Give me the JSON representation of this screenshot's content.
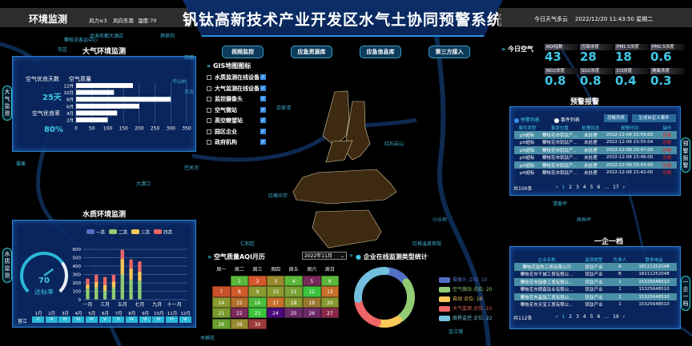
{
  "header": {
    "left_title": "环境监测",
    "wind_force": "风力≤3",
    "wind_dir": "风向东南",
    "humidity": "湿度:70",
    "title": "钒钛高新技术产业开发区水气土协同预警系统",
    "weather": "今日天气多云",
    "datetime": "2022/12/20 11:43:50 星期二"
  },
  "side_tabs": {
    "air": "大气监测",
    "water": "水质监测",
    "alarm": "预警报警",
    "enterprise": "一企一档"
  },
  "nav_buttons": [
    "视频监控",
    "应急资源库",
    "应急信息库",
    "第三方接入"
  ],
  "gis": {
    "title": "GIS地图图标",
    "items": [
      "水质监测在线设备",
      "大气监测在线设备",
      "监控摄像头",
      "空气微站",
      "高空瞭望站",
      "园区企业",
      "政府机构"
    ]
  },
  "air": {
    "title": "大气环境监测",
    "good_days_label": "空气优良天数",
    "good_days": "25天",
    "good_rate_label": "空气优良率",
    "good_rate": "80%",
    "chart_title": "空气质量"
  },
  "water": {
    "title": "水质环境监测",
    "gauge_value": "70",
    "gauge_label": "达标率",
    "gauge_percent": 70,
    "table_row_label": "营江",
    "months": [
      "1月",
      "2月",
      "3月",
      "4月",
      "5月",
      "6月",
      "7月",
      "8月",
      "9月",
      "10月",
      "11月",
      "12月"
    ],
    "grades": [
      "II",
      "III",
      "III",
      "VI",
      "IV",
      "V",
      "II",
      "IV",
      "VI",
      "IV",
      "IV",
      "VI"
    ]
  },
  "today_air": {
    "title": "今日空气",
    "items": [
      {
        "label": "AQI指数",
        "value": "43"
      },
      {
        "label": "污染浓度",
        "value": "28"
      },
      {
        "label": "PM1.5浓度",
        "value": "18"
      },
      {
        "label": "PM2.5浓度",
        "value": "0.6"
      },
      {
        "label": "NO2浓度",
        "value": "0.8"
      },
      {
        "label": "SO2浓度",
        "value": "0.8"
      },
      {
        "label": "CO浓度",
        "value": "0.4"
      },
      {
        "label": "臭氧浓度",
        "value": "0.3"
      }
    ]
  },
  "alarm": {
    "title": "预警报警",
    "radio1": "预警列表",
    "radio2": "事件列表",
    "btn1": "忽略列表",
    "btn2": "生成自定义事件",
    "headers": [
      "事件类型",
      "事发位置",
      "处理状态",
      "报警时间",
      "操作"
    ],
    "rows": [
      [
        "pH超标",
        "攀枝花市钒钛产...",
        "未处理",
        "2022-12-08 23:59:00",
        "忽略"
      ],
      [
        "pH超标",
        "攀枝花市钒钛产...",
        "未处理",
        "2022-12-08 23:55:04",
        "忽略"
      ],
      [
        "pH超标",
        "攀枝花市钒钛产...",
        "未处理",
        "2022-12-08 23:47:00",
        "忽略"
      ],
      [
        "pH超标",
        "攀枝花市钒钛产...",
        "未处理",
        "2022-12-08 23:46:00",
        "忽略"
      ],
      [
        "pH超标",
        "攀枝花市钒钛产...",
        "未处理",
        "2022-12-08 23:43:00",
        "忽略"
      ],
      [
        "pH超标",
        "攀枝花市钒钛产...",
        "未处理",
        "2022-12-08 23:42:00",
        "忽略"
      ]
    ],
    "total": "共100条",
    "pages": [
      "‹",
      "1",
      "2",
      "3",
      "4",
      "5",
      "6",
      "...",
      "17",
      "›"
    ]
  },
  "enterprise": {
    "title": "一企一档",
    "headers": [
      "企业名称",
      "监测类型",
      "负责人",
      "联系电话"
    ],
    "rows": [
      [
        "攀枝花钛陈工贸有限公司",
        "钒钛产业",
        "A",
        "18111252048"
      ],
      [
        "攀枝花市千城工贸有限公...",
        "钒钛产业",
        "B",
        "18111252048"
      ],
      [
        "攀枝花市瑞泰工贸有限公...",
        "钒钛产业",
        "1",
        "15325648510"
      ],
      [
        "攀枝花市朗鑫钛业有限公...",
        "钒钛产业",
        "1",
        "15325648510"
      ],
      [
        "攀枝花市晶瑞工贸有限公...",
        "钒钛产业",
        "1",
        "15325648510"
      ],
      [
        "攀枝花市天宝工贸有限公...",
        "钒钛产业",
        "1",
        "15325648510"
      ]
    ],
    "total": "共112条",
    "pages": [
      "‹",
      "1",
      "2",
      "3",
      "4",
      "5",
      "6",
      "...",
      "19",
      "›"
    ]
  },
  "calendar": {
    "title": "空气质量AQI月历",
    "month": "2022年11月",
    "weekdays": [
      "周一",
      "周二",
      "周三",
      "周四",
      "周五",
      "周六",
      "周日"
    ],
    "start_offset": 1,
    "colors": [
      "#5cb83a",
      "#d4582c",
      "#9a8a2e",
      "#5cb83a",
      "#7a2a5a",
      "#5cb83a",
      "#c8502a",
      "#d05a2a",
      "#8a9a30",
      "#8a9a30",
      "#7aa035",
      "#3cc43c",
      "#c8702a",
      "#8a9a30",
      "#b0702a",
      "#4cbc3c",
      "#c8702a",
      "#8a9a30",
      "#9a7a30",
      "#8a9a30",
      "#7a9a30",
      "#7a2a5a",
      "#3cc43c",
      "#4a0a7a",
      "#6a2a6a",
      "#6a2a6a",
      "#8a2a4a",
      "#6aa030",
      "#9a8a30",
      "#9a3a3a"
    ]
  },
  "chart_data": [
    {
      "type": "bar",
      "orientation": "horizontal",
      "title": "空气质量",
      "categories": [
        "12月",
        "10月",
        "8月",
        "6月",
        "4月",
        "2月"
      ],
      "values": [
        180,
        120,
        300,
        200,
        130,
        100
      ],
      "xlim": [
        0,
        350
      ],
      "xticks": [
        0,
        50,
        100,
        150,
        200,
        250,
        300,
        350
      ],
      "grid": true
    },
    {
      "type": "bar",
      "stacked": true,
      "categories": [
        "一月",
        "二月",
        "三月",
        "四月",
        "五月",
        "六月",
        "七月",
        "八月",
        "九月",
        "十月",
        "十一月",
        "十二月"
      ],
      "xtick_labels": [
        "一月",
        "",
        "三月",
        "",
        "五月",
        "",
        "七月",
        "",
        "九月",
        "",
        "十一月",
        ""
      ],
      "ylim": [
        0,
        600
      ],
      "yticks": [
        0,
        100,
        200,
        300,
        400,
        500,
        600
      ],
      "legend": "top",
      "series": [
        {
          "name": "一类",
          "color": "#5470c6",
          "values": [
            5,
            5,
            5,
            5,
            5,
            5,
            5,
            5,
            5,
            5,
            5,
            5
          ]
        },
        {
          "name": "二类",
          "color": "#91cc75",
          "values": [
            125,
            140,
            100,
            140,
            295,
            235,
            220,
            0,
            0,
            0,
            0,
            0
          ]
        },
        {
          "name": "三类",
          "color": "#fac858",
          "values": [
            50,
            65,
            70,
            70,
            185,
            130,
            110,
            0,
            0,
            0,
            0,
            0
          ]
        },
        {
          "name": "四类",
          "color": "#ee6666",
          "values": [
            70,
            85,
            95,
            80,
            110,
            110,
            120,
            0,
            0,
            0,
            0,
            0
          ]
        }
      ]
    },
    {
      "type": "pie",
      "donut": true,
      "title": "企业在线监测类型统计",
      "series": [
        {
          "name": "摄像头",
          "label": "摄像头 点位: 10",
          "value": 10,
          "color": "#5470c6"
        },
        {
          "name": "空气微站",
          "label": "空气微站 点位: 20",
          "value": 20,
          "color": "#91cc75"
        },
        {
          "name": "自动",
          "label": "自动 点位: 10",
          "value": 10,
          "color": "#fac858"
        },
        {
          "name": "大气监测",
          "label": "大气监测 点位: 15",
          "value": 15,
          "color": "#ee6666"
        },
        {
          "name": "周界监控",
          "label": "周界监控 点位: 22",
          "value": 22,
          "color": "#73c0de"
        }
      ]
    }
  ],
  "map": {
    "labels": [
      "攀枝花客运中心",
      "东区",
      "金海名都大酒店",
      "炳草岗",
      "石梯",
      "华山村",
      "万达",
      "白家湾",
      "倮果",
      "红格中学",
      "巴关河",
      "大渡口",
      "小沙坝",
      "清香坪",
      "弄弄坪",
      "红石岩山",
      "仁和区",
      "木棉花",
      "金江镇",
      "红格温泉宾馆"
    ]
  }
}
